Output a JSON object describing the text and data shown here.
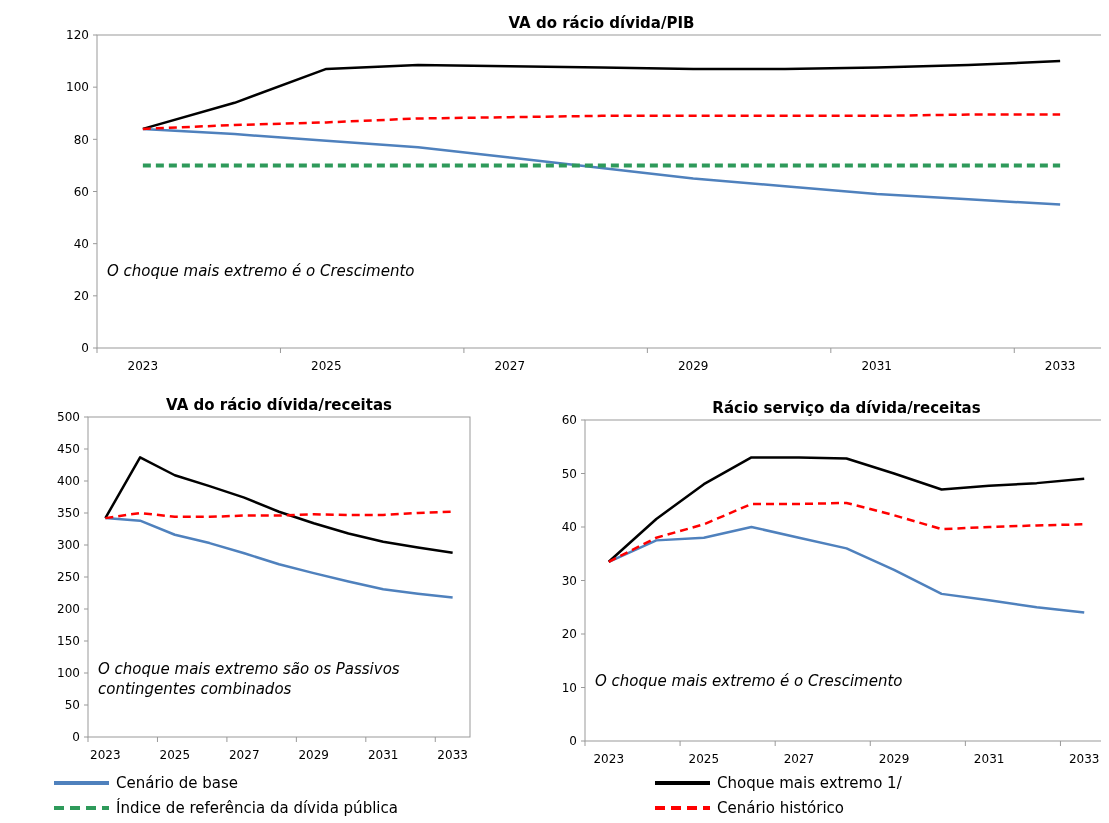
{
  "chart_data": [
    {
      "type": "line",
      "title": "VA do rácio dívida/PIB",
      "categories": [
        "2023",
        null,
        "2025",
        null,
        "2027",
        null,
        "2029",
        null,
        "2031",
        null,
        "2033"
      ],
      "ylim": [
        0,
        120
      ],
      "yticks": [
        0,
        20,
        40,
        60,
        80,
        100,
        120
      ],
      "grid": false,
      "legend": "bottom",
      "annotations": [
        "O choque mais extremo é o Crescimento"
      ],
      "series": [
        {
          "name": "Cenário de base",
          "color": "#4f81bd",
          "line_style": "solid",
          "values": [
            84,
            82,
            79.5,
            77,
            73,
            69,
            65,
            62,
            59,
            57,
            55
          ]
        },
        {
          "name": "Choque mais extremo 1/",
          "color": "#000000",
          "line_style": "solid",
          "values": [
            84,
            94,
            107,
            108.5,
            108,
            107.5,
            107,
            107,
            107.5,
            108.5,
            110
          ]
        },
        {
          "name": "Índice de referência da dívida pública",
          "color": "#2e9a5a",
          "line_style": "dashed",
          "values": [
            70,
            70,
            70,
            70,
            70,
            70,
            70,
            70,
            70,
            70,
            70
          ]
        },
        {
          "name": "Cenário histórico",
          "color": "#ff0000",
          "line_style": "dashed",
          "values": [
            84,
            85.5,
            86.5,
            88,
            88.5,
            89,
            89,
            89,
            89,
            89.5,
            89.5
          ]
        }
      ]
    },
    {
      "type": "line",
      "title": "VA do rácio dívida/receitas",
      "categories": [
        "2023",
        null,
        "2025",
        null,
        "2027",
        null,
        "2029",
        null,
        "2031",
        null,
        "2033"
      ],
      "ylim": [
        0,
        500
      ],
      "yticks": [
        0,
        50,
        100,
        150,
        200,
        250,
        300,
        350,
        400,
        450,
        500
      ],
      "grid": false,
      "annotations": [
        "O choque mais extremo são os Passivos contingentes combinados"
      ],
      "series": [
        {
          "color": "#4f81bd",
          "line_style": "solid",
          "values": [
            342,
            338,
            316,
            303,
            287,
            270,
            256,
            243,
            231,
            224,
            218
          ]
        },
        {
          "color": "#000000",
          "line_style": "solid",
          "values": [
            342,
            437,
            409,
            392,
            374,
            352,
            334,
            318,
            305,
            296,
            288
          ]
        },
        {
          "color": "#ff0000",
          "line_style": "dashed",
          "values": [
            342,
            350,
            344,
            344,
            346,
            346,
            348,
            347,
            347,
            350,
            352
          ]
        }
      ]
    },
    {
      "type": "line",
      "title": "Rácio serviço da dívida/receitas",
      "categories": [
        "2023",
        null,
        "2025",
        null,
        "2027",
        null,
        "2029",
        null,
        "2031",
        null,
        "2033"
      ],
      "ylim": [
        0,
        60
      ],
      "yticks": [
        0,
        10,
        20,
        30,
        40,
        50,
        60
      ],
      "grid": false,
      "annotations": [
        "O choque mais extremo é o Crescimento"
      ],
      "series": [
        {
          "color": "#4f81bd",
          "line_style": "solid",
          "values": [
            33.5,
            37.5,
            38,
            40,
            38,
            36,
            32,
            27.5,
            26.3,
            25,
            24
          ]
        },
        {
          "color": "#000000",
          "line_style": "solid",
          "values": [
            33.5,
            41.5,
            48,
            53,
            53,
            52.8,
            50,
            47,
            47.7,
            48.2,
            49
          ]
        },
        {
          "color": "#ff0000",
          "line_style": "dashed",
          "values": [
            33.5,
            38,
            40.5,
            44.3,
            44.3,
            44.5,
            42.2,
            39.6,
            40,
            40.3,
            40.5
          ]
        }
      ]
    }
  ]
}
